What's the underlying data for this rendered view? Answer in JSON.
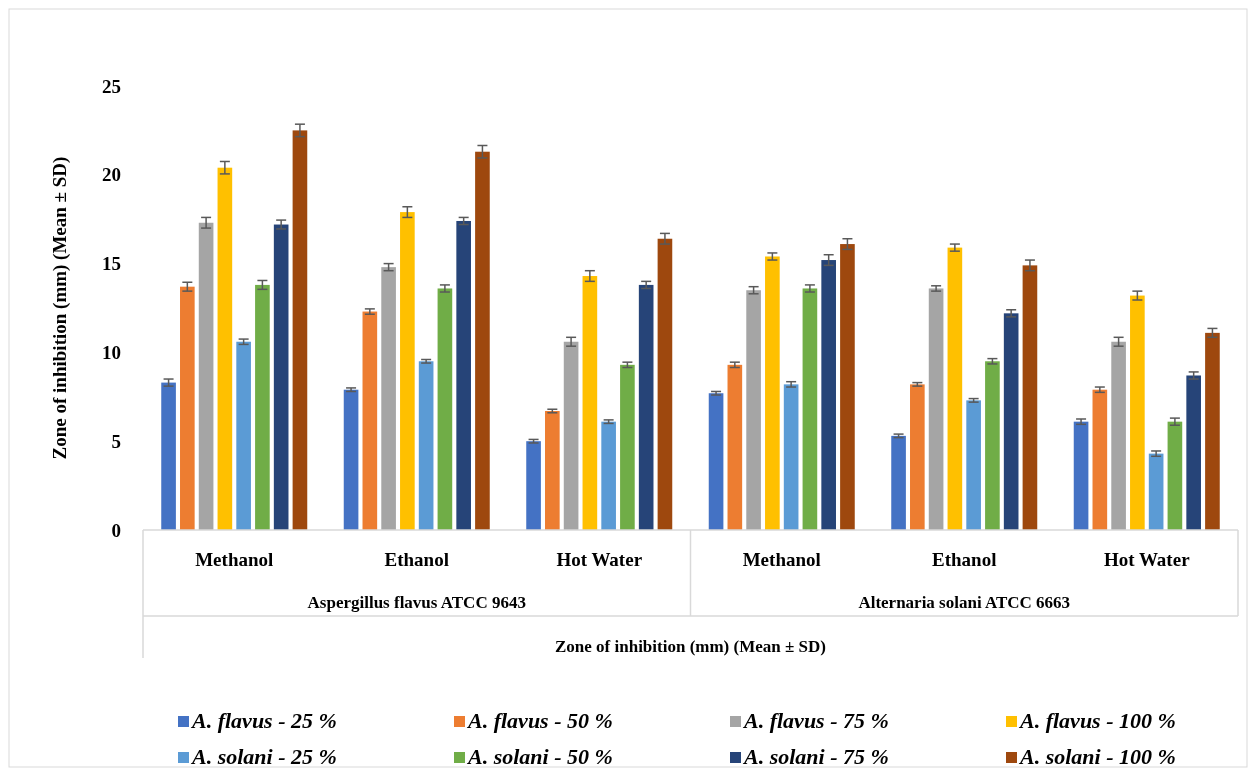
{
  "chart_data": {
    "type": "bar",
    "ylabel": "Zone of inhibition (mm) (Mean ± SD)",
    "xlabel": "Zone of inhibition (mm) (Mean ± SD)",
    "categories": [
      "Methanol",
      "Ethanol",
      "Hot Water",
      "Methanol",
      "Ethanol",
      "Hot Water"
    ],
    "annotations": [
      "Aspergillus flavus ATCC 9643",
      "Alternaria solani ATCC 6663"
    ],
    "ylim": [
      0,
      25
    ],
    "yticks": [
      0,
      5,
      10,
      15,
      20,
      25
    ],
    "grid": false,
    "legend": "bottom",
    "series": [
      {
        "name": "A. flavus - 25 %",
        "color": "#4472c4",
        "values": [
          8.3,
          7.9,
          5.0,
          7.7,
          5.3,
          6.1
        ],
        "errors": [
          0.2,
          0.1,
          0.1,
          0.1,
          0.1,
          0.15
        ]
      },
      {
        "name": "A. flavus - 50 %",
        "color": "#ed7d31",
        "values": [
          13.7,
          12.3,
          6.7,
          9.3,
          8.2,
          7.9
        ],
        "errors": [
          0.25,
          0.15,
          0.1,
          0.15,
          0.1,
          0.15
        ]
      },
      {
        "name": "A. flavus - 75 %",
        "color": "#a5a5a5",
        "values": [
          17.3,
          14.8,
          10.6,
          13.5,
          13.6,
          10.6
        ],
        "errors": [
          0.3,
          0.2,
          0.25,
          0.2,
          0.15,
          0.25
        ]
      },
      {
        "name": "A. flavus - 100 %",
        "color": "#ffc000",
        "values": [
          20.4,
          17.9,
          14.3,
          15.4,
          15.9,
          13.2
        ],
        "errors": [
          0.35,
          0.3,
          0.3,
          0.2,
          0.2,
          0.25
        ]
      },
      {
        "name": "A. solani - 25 %",
        "color": "#5b9bd5",
        "values": [
          10.6,
          9.5,
          6.1,
          8.2,
          7.3,
          4.3
        ],
        "errors": [
          0.15,
          0.1,
          0.1,
          0.15,
          0.1,
          0.15
        ]
      },
      {
        "name": "A. solani - 50 %",
        "color": "#70ad47",
        "values": [
          13.8,
          13.6,
          9.3,
          13.6,
          9.5,
          6.1
        ],
        "errors": [
          0.25,
          0.2,
          0.15,
          0.2,
          0.15,
          0.2
        ]
      },
      {
        "name": "A. solani - 75 %",
        "color": "#264478",
        "values": [
          17.2,
          17.4,
          13.8,
          15.2,
          12.2,
          8.7
        ],
        "errors": [
          0.25,
          0.2,
          0.2,
          0.3,
          0.2,
          0.2
        ]
      },
      {
        "name": "A. solani - 100 %",
        "color": "#9e480e",
        "values": [
          22.5,
          21.3,
          16.4,
          16.1,
          14.9,
          11.1
        ],
        "errors": [
          0.35,
          0.35,
          0.3,
          0.3,
          0.3,
          0.25
        ]
      }
    ]
  }
}
